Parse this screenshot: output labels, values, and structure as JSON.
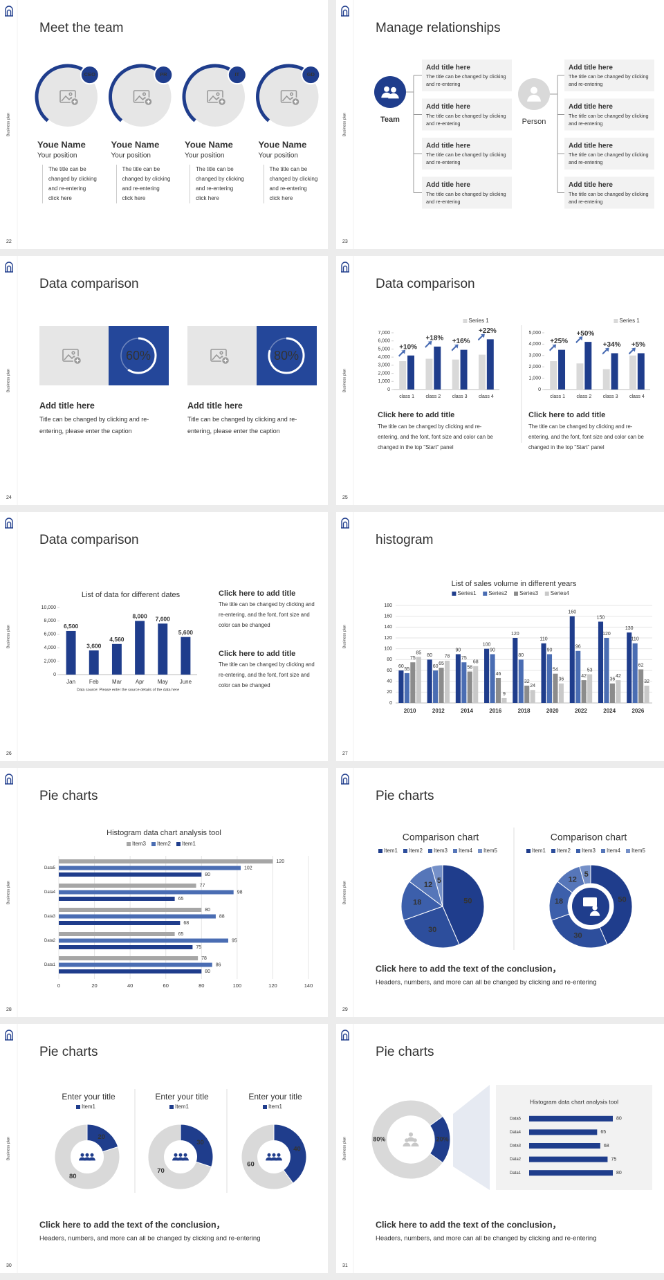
{
  "side_label": "Business plan",
  "slides": [
    {
      "page_number": "22",
      "title": "Meet the team",
      "members": [
        {
          "badge": "CEO",
          "name": "Youe Name",
          "position": "Your position",
          "text": "The title can be changed by clicking and re-entering click here"
        },
        {
          "badge": "PR",
          "name": "Youe Name",
          "position": "Your position",
          "text": "The title can be changed by clicking and re-entering click here"
        },
        {
          "badge": "IT",
          "name": "Youe Name",
          "position": "Your position",
          "text": "The title can be changed by clicking and re-entering click here"
        },
        {
          "badge": "GD",
          "name": "Youe Name",
          "position": "Your position",
          "text": "The title can be changed by clicking and re-entering click here"
        }
      ]
    },
    {
      "page_number": "23",
      "title": "Manage relationships",
      "left": {
        "label": "Team",
        "items": [
          {
            "title": "Add title here",
            "text": "The title can be changed by clicking and re-entering"
          },
          {
            "title": "Add title here",
            "text": "The title can be changed by clicking and re-entering"
          },
          {
            "title": "Add title here",
            "text": "The title can be changed by clicking and re-entering"
          },
          {
            "title": "Add title here",
            "text": "The title can be changed by clicking and re-entering"
          }
        ]
      },
      "right": {
        "label": "Person",
        "items": [
          {
            "title": "Add title here",
            "text": "The title can be changed by clicking and re-entering"
          },
          {
            "title": "Add title here",
            "text": "The title can be changed by clicking and re-entering"
          },
          {
            "title": "Add title here",
            "text": "The title can be changed by clicking and re-entering"
          },
          {
            "title": "Add title here",
            "text": "The title can be changed by clicking and re-entering"
          }
        ]
      }
    },
    {
      "page_number": "24",
      "title": "Data comparison",
      "panels": [
        {
          "chart": {
            "type": "ring",
            "value": 60,
            "value_label": "60%"
          },
          "heading": "Add title here",
          "text": "Title can be changed by clicking and re-entering, please enter the caption"
        },
        {
          "chart": {
            "type": "ring",
            "value": 80,
            "value_label": "80%"
          },
          "heading": "Add title here",
          "text": "Title can be changed by clicking and re-entering, please enter the caption"
        }
      ]
    },
    {
      "page_number": "25",
      "title": "Data comparison",
      "panels": [
        {
          "chart": {
            "type": "bar",
            "categories": [
              "class 1",
              "class 2",
              "class 3",
              "class 4"
            ],
            "series": [
              {
                "name": "Series 1",
                "color": "#d9d9d9",
                "values": [
                  3500,
                  3800,
                  3700,
                  4300
                ]
              },
              {
                "color": "#1f3d8c",
                "values": [
                  4200,
                  5300,
                  4900,
                  6200
                ]
              }
            ],
            "annotations": [
              "+10%",
              "+18%",
              "+16%",
              "+22%"
            ],
            "ylim": [
              0,
              7000
            ],
            "yticks": [
              0,
              {
                "value": 1000,
                "label": "1,000"
              },
              {
                "value": 2000,
                "label": "2,000"
              },
              {
                "value": 3000,
                "label": "3,000"
              },
              {
                "value": 4000,
                "label": "4,000"
              },
              {
                "value": 5000,
                "label": "5,000"
              },
              {
                "value": 6000,
                "label": "6,000"
              },
              {
                "value": 7000,
                "label": "7,000"
              }
            ]
          },
          "heading": "Click here to add title",
          "text": "The title can be changed by clicking and re-entering, and the font, font size and color can be changed in the top \"Start\" panel"
        },
        {
          "chart": {
            "type": "bar",
            "categories": [
              "class 1",
              "class 2",
              "class 3",
              "class 4"
            ],
            "series": [
              {
                "name": "Series 1",
                "color": "#d9d9d9",
                "values": [
                  2500,
                  2300,
                  1800,
                  3000
                ]
              },
              {
                "color": "#1f3d8c",
                "values": [
                  3500,
                  4200,
                  3200,
                  3200
                ]
              }
            ],
            "annotations": [
              "+25%",
              "+50%",
              "+34%",
              "+5%"
            ],
            "ylim": [
              0,
              5000
            ],
            "yticks": [
              0,
              {
                "value": 1000,
                "label": "1,000"
              },
              {
                "value": 2000,
                "label": "2,000"
              },
              {
                "value": 3000,
                "label": "3,000"
              },
              {
                "value": 4000,
                "label": "4,000"
              },
              {
                "value": 5000,
                "label": "5,000"
              }
            ]
          },
          "heading": "Click here to add title",
          "text": "The title can be changed by clicking and re-entering, and the font, font size and color can be changed in the top \"Start\" panel"
        }
      ]
    },
    {
      "page_number": "26",
      "title": "Data comparison",
      "chart": {
        "type": "bar",
        "title": "List of data for different dates",
        "categories": [
          "Jan",
          "Feb",
          "Mar",
          "Apr",
          "May",
          "June"
        ],
        "values": [
          6500,
          3600,
          4560,
          8000,
          7600,
          5600
        ],
        "value_labels": [
          "6,500",
          "3,600",
          "4,560",
          "8,000",
          "7,600",
          "5,600"
        ],
        "color": "#1f3d8c",
        "ylim": [
          0,
          10000
        ],
        "yticks": [
          0,
          {
            "value": 2000,
            "label": "2,000"
          },
          {
            "value": 4000,
            "label": "4,000"
          },
          {
            "value": 6000,
            "label": "6,000"
          },
          {
            "value": 8000,
            "label": "8,000"
          },
          {
            "value": 10000,
            "label": "10,000"
          }
        ],
        "note": "Data source: Please enter the source details of the data here"
      },
      "blocks": [
        {
          "heading": "Click here to add title",
          "text": "The title can be changed by clicking and re-entering, and the font, font size and color can be changed"
        },
        {
          "heading": "Click here to add title",
          "text": "The title can be changed by clicking and re-entering, and the font, font size and color can be changed"
        }
      ]
    },
    {
      "page_number": "27",
      "title": "histogram",
      "chart": {
        "type": "bar",
        "title": "List of sales volume in different years",
        "categories": [
          "2010",
          "2012",
          "2014",
          "2016",
          "2018",
          "2020",
          "2022",
          "2024",
          "2026"
        ],
        "series": [
          {
            "name": "Series1",
            "color": "#1f3d8c",
            "values": [
              60,
              80,
              90,
              100,
              120,
              110,
              160,
              150,
              130
            ]
          },
          {
            "name": "Series2",
            "color": "#4a6db3",
            "values": [
              55,
              60,
              75,
              90,
              80,
              90,
              96,
              120,
              110
            ]
          },
          {
            "name": "Series3",
            "color": "#8c8c8c",
            "values": [
              75,
              65,
              58,
              46,
              32,
              54,
              42,
              36,
              62
            ]
          },
          {
            "name": "Series4",
            "color": "#c9c9c9",
            "values": [
              85,
              78,
              68,
              9,
              24,
              36,
              53,
              42,
              32
            ]
          }
        ],
        "ylim": [
          0,
          180
        ],
        "yticks": [
          0,
          20,
          40,
          60,
          80,
          100,
          120,
          140,
          160,
          180
        ],
        "grid": true
      }
    },
    {
      "page_number": "28",
      "title": "Pie charts",
      "chart": {
        "type": "hbar",
        "title": "Histogram data chart analysis tool",
        "categories": [
          "Data1",
          "Data2",
          "Data3",
          "Data4",
          "Data5"
        ],
        "series": [
          {
            "name": "Item3",
            "color": "#a6a6a6",
            "values": [
              78,
              65,
              80,
              77,
              120
            ]
          },
          {
            "name": "Item2",
            "color": "#4a6db3",
            "values": [
              86,
              95,
              88,
              98,
              102
            ]
          },
          {
            "name": "Item1",
            "color": "#1f3d8c",
            "values": [
              80,
              75,
              68,
              65,
              80
            ]
          }
        ],
        "xlim": [
          0,
          140
        ],
        "xticks": [
          0,
          20,
          40,
          60,
          80,
          100,
          120,
          140
        ],
        "grid": true
      }
    },
    {
      "page_number": "29",
      "title": "Pie charts",
      "charts": [
        {
          "type": "pie",
          "title": "Comparison chart",
          "categories": [
            "Item1",
            "Item2",
            "Item3",
            "Item4",
            "Item5"
          ],
          "values": [
            50,
            30,
            18,
            12,
            5
          ],
          "colors": [
            "#1f3d8c",
            "#2d4e9c",
            "#3c5fab",
            "#5676b9",
            "#7590c8"
          ]
        },
        {
          "type": "donut",
          "title": "Comparison chart",
          "categories": [
            "Item1",
            "Item2",
            "Item3",
            "Item4",
            "Item5"
          ],
          "values": [
            50,
            30,
            18,
            12,
            5
          ],
          "colors": [
            "#1f3d8c",
            "#2d4e9c",
            "#3c5fab",
            "#5676b9",
            "#7590c8"
          ]
        }
      ],
      "conclusion": {
        "heading": "Click here to add the text of the conclusion，",
        "text": "Headers, numbers, and more can all be changed by clicking and re-entering"
      }
    },
    {
      "page_number": "30",
      "title": "Pie charts",
      "charts": [
        {
          "type": "donut",
          "title": "Enter your title",
          "series_name": "Item1",
          "values": [
            20,
            80
          ],
          "colors": [
            "#1f3d8c",
            "#d9d9d9"
          ]
        },
        {
          "type": "donut",
          "title": "Enter your title",
          "series_name": "Item1",
          "values": [
            30,
            70
          ],
          "colors": [
            "#1f3d8c",
            "#d9d9d9"
          ]
        },
        {
          "type": "donut",
          "title": "Enter your title",
          "series_name": "Item1",
          "values": [
            40,
            60
          ],
          "colors": [
            "#1f3d8c",
            "#d9d9d9"
          ]
        }
      ],
      "conclusion": {
        "heading": "Click here to add the text of the conclusion，",
        "text": "Headers, numbers, and more can all be changed by clicking and re-entering"
      }
    },
    {
      "page_number": "31",
      "title": "Pie charts",
      "donut": {
        "type": "donut",
        "values": [
          80,
          20
        ],
        "value_labels": [
          "80%",
          "20%"
        ],
        "colors": [
          "#d9d9d9",
          "#1f3d8c"
        ]
      },
      "chart": {
        "type": "hbar",
        "title": "Histogram data chart analysis tool",
        "categories": [
          "Data5",
          "Data4",
          "Data3",
          "Data2",
          "Data1"
        ],
        "values": [
          80,
          65,
          68,
          75,
          80
        ],
        "color": "#1f3d8c"
      },
      "conclusion": {
        "heading": "Click here to add the text of the conclusion，",
        "text": "Headers, numbers, and more can all be changed by clicking and re-entering"
      }
    }
  ]
}
